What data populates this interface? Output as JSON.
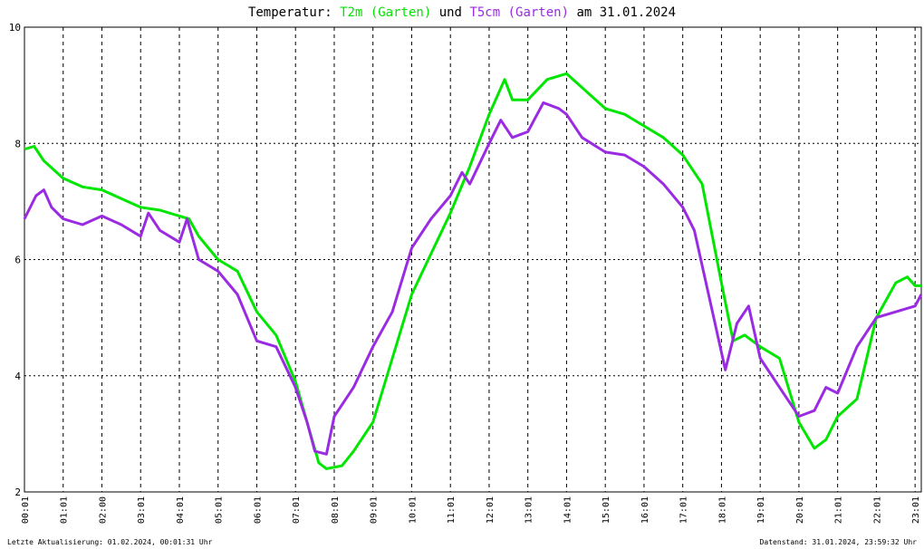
{
  "chart_data": {
    "type": "line",
    "title_prefix": "Temperatur:",
    "title_joiner": "und",
    "title_suffix": "am 31.01.2024",
    "footer_left": "Letzte Aktualisierung: 01.02.2024, 00:01:31 Uhr",
    "footer_right": "Datenstand: 31.01.2024, 23:59:32 Uhr",
    "xlim": [
      0,
      23.16
    ],
    "ylim": [
      2,
      10
    ],
    "yticks": [
      2,
      4,
      6,
      8,
      10
    ],
    "grid": true,
    "xticks": [
      {
        "value": 0,
        "label": "00:01"
      },
      {
        "value": 1,
        "label": "01:01"
      },
      {
        "value": 2,
        "label": "02:00"
      },
      {
        "value": 3,
        "label": "03:01"
      },
      {
        "value": 4,
        "label": "04:01"
      },
      {
        "value": 5,
        "label": "05:01"
      },
      {
        "value": 6,
        "label": "06:01"
      },
      {
        "value": 7,
        "label": "07:01"
      },
      {
        "value": 8,
        "label": "08:01"
      },
      {
        "value": 9,
        "label": "09:01"
      },
      {
        "value": 10,
        "label": "10:01"
      },
      {
        "value": 11,
        "label": "11:01"
      },
      {
        "value": 12,
        "label": "12:01"
      },
      {
        "value": 13,
        "label": "13:01"
      },
      {
        "value": 14,
        "label": "14:01"
      },
      {
        "value": 15,
        "label": "15:01"
      },
      {
        "value": 16,
        "label": "16:01"
      },
      {
        "value": 17,
        "label": "17:01"
      },
      {
        "value": 18,
        "label": "18:01"
      },
      {
        "value": 19,
        "label": "19:01"
      },
      {
        "value": 20,
        "label": "20:01"
      },
      {
        "value": 21,
        "label": "21:01"
      },
      {
        "value": 22,
        "label": "22:01"
      },
      {
        "value": 23,
        "label": "23:01"
      }
    ],
    "series": [
      {
        "name": "T2m (Garten)",
        "color": "#00e600",
        "x": [
          0,
          0.25,
          0.5,
          1,
          1.5,
          2,
          2.5,
          3,
          3.5,
          4,
          4.25,
          4.5,
          5,
          5.5,
          6,
          6.5,
          7,
          7.3,
          7.6,
          7.8,
          8.2,
          8.5,
          9,
          9.5,
          10,
          10.5,
          11,
          11.5,
          12,
          12.4,
          12.6,
          13,
          13.5,
          14,
          14.5,
          15,
          15.5,
          16,
          16.5,
          17,
          17.5,
          18,
          18.3,
          18.6,
          19,
          19.5,
          20,
          20.4,
          20.7,
          21,
          21.5,
          22,
          22.5,
          22.8,
          23,
          23.16
        ],
        "values": [
          7.9,
          7.95,
          7.7,
          7.4,
          7.25,
          7.2,
          7.05,
          6.9,
          6.85,
          6.75,
          6.7,
          6.4,
          6.0,
          5.8,
          5.1,
          4.7,
          3.9,
          3.2,
          2.5,
          2.4,
          2.45,
          2.7,
          3.2,
          4.3,
          5.4,
          6.1,
          6.8,
          7.6,
          8.5,
          9.1,
          8.75,
          8.75,
          9.1,
          9.2,
          8.9,
          8.6,
          8.5,
          8.3,
          8.1,
          7.8,
          7.3,
          5.6,
          4.6,
          4.7,
          4.5,
          4.3,
          3.2,
          2.75,
          2.9,
          3.3,
          3.6,
          5.0,
          5.6,
          5.7,
          5.55,
          5.55
        ]
      },
      {
        "name": "T5cm (Garten)",
        "color": "#9a2be2",
        "x": [
          0,
          0.3,
          0.5,
          0.7,
          1,
          1.5,
          2,
          2.5,
          3,
          3.2,
          3.5,
          4,
          4.2,
          4.5,
          5,
          5.5,
          6,
          6.5,
          7,
          7.3,
          7.5,
          7.8,
          8,
          8.5,
          9,
          9.5,
          10,
          10.5,
          11,
          11.3,
          11.5,
          12,
          12.3,
          12.6,
          13,
          13.4,
          13.8,
          14,
          14.4,
          15,
          15.5,
          16,
          16.5,
          17,
          17.3,
          17.8,
          18.1,
          18.4,
          18.7,
          19,
          19.5,
          20,
          20.4,
          20.7,
          21,
          21.5,
          22,
          22.5,
          23,
          23.16
        ],
        "values": [
          6.7,
          7.1,
          7.2,
          6.9,
          6.7,
          6.6,
          6.75,
          6.6,
          6.4,
          6.8,
          6.5,
          6.3,
          6.7,
          6.0,
          5.8,
          5.4,
          4.6,
          4.5,
          3.8,
          3.2,
          2.7,
          2.65,
          3.3,
          3.8,
          4.5,
          5.1,
          6.2,
          6.7,
          7.1,
          7.5,
          7.3,
          8.0,
          8.4,
          8.1,
          8.2,
          8.7,
          8.6,
          8.5,
          8.1,
          7.85,
          7.8,
          7.6,
          7.3,
          6.9,
          6.5,
          5.0,
          4.1,
          4.9,
          5.2,
          4.3,
          3.8,
          3.3,
          3.4,
          3.8,
          3.7,
          4.5,
          5.0,
          5.1,
          5.2,
          5.4
        ]
      }
    ]
  }
}
